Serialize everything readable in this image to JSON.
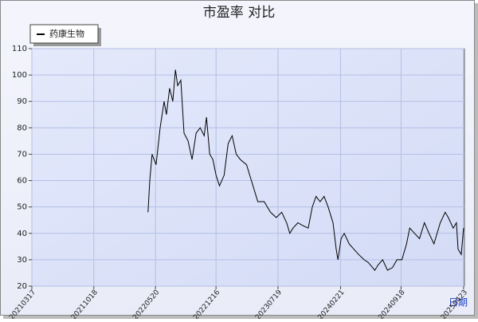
{
  "chart_data": {
    "type": "line",
    "title": "市盈率  对比",
    "x_label": "日期",
    "legend": "top-left",
    "grid": true,
    "x": [
      "20220424",
      "20220430",
      "20220508",
      "20220522",
      "20220605",
      "20220619",
      "20220627",
      "20220708",
      "20220719",
      "20220728",
      "20220805",
      "20220816",
      "20220827",
      "20220910",
      "20220924",
      "20221008",
      "20221022",
      "20221105",
      "20221113",
      "20221124",
      "20221205",
      "20221216",
      "20221228",
      "20230113",
      "20230127",
      "20230210",
      "20230224",
      "20230310",
      "20230401",
      "20230412",
      "20230429",
      "20230510",
      "20230601",
      "20230623",
      "20230713",
      "20230801",
      "20230818",
      "20230829",
      "20230909",
      "20230926",
      "20231012",
      "20231101",
      "20231115",
      "20231128",
      "20231212",
      "20231226",
      "20240109",
      "20240126",
      "20240206",
      "20240212",
      "20240223",
      "20240305",
      "20240322",
      "20240407",
      "20240424",
      "20240513",
      "20240527",
      "20240619",
      "20240630",
      "20240716",
      "20240802",
      "20240819",
      "20240904",
      "20240921",
      "20241007",
      "20241018",
      "20241104",
      "20241121",
      "20241208",
      "20241224",
      "20250110",
      "20250201",
      "20250218",
      "20250301",
      "20250318",
      "20250329",
      "20250404",
      "20250415",
      "20250423"
    ],
    "series": [
      {
        "name": "药康生物",
        "color": "#000000",
        "values": [
          48,
          60,
          70,
          66,
          80,
          90,
          85,
          95,
          90,
          102,
          96,
          98,
          78,
          75,
          68,
          78,
          80,
          77,
          84,
          70,
          68,
          62,
          58,
          62,
          74,
          77,
          70,
          68,
          66,
          62,
          56,
          52,
          52,
          48,
          46,
          48,
          44,
          40,
          42,
          44,
          43,
          42,
          50,
          54,
          52,
          54,
          50,
          44,
          34,
          30,
          38,
          40,
          36,
          34,
          32,
          30,
          29,
          26,
          28,
          30,
          26,
          27,
          30,
          30,
          36,
          42,
          40,
          38,
          44,
          40,
          36,
          44,
          48,
          46,
          42,
          44,
          34,
          32,
          42
        ]
      }
    ],
    "xlim": [
      "20210317",
      "20250426"
    ],
    "xticks": [
      "20210317",
      "20211018",
      "20220520",
      "20221216",
      "20230719",
      "20240221",
      "20240918",
      "20250423"
    ],
    "ylim": [
      20,
      110
    ],
    "yticks": [
      20,
      30,
      40,
      50,
      60,
      70,
      80,
      90,
      100,
      110
    ]
  }
}
